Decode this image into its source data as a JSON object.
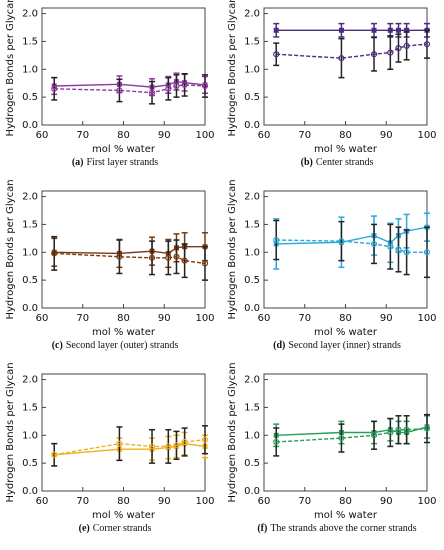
{
  "chart_data": [
    {
      "type": "line",
      "caption_label": "(a)",
      "caption": "First layer strands",
      "xlabel": "mol % water",
      "ylabel": "Hydrogen Bonds per Glycan",
      "x": [
        63,
        79,
        87,
        91,
        93,
        95,
        100
      ],
      "xlim": [
        60,
        100
      ],
      "xticks": [
        60,
        70,
        80,
        90,
        100
      ],
      "ylim": [
        0,
        2.1
      ],
      "yticks": [
        {
          "value": 0,
          "label": "0.0"
        },
        {
          "value": 0.5,
          "label": "0.5"
        },
        {
          "value": 1,
          "label": "1.0"
        },
        {
          "value": 1.5,
          "label": "1.5"
        },
        {
          "value": 2,
          "label": "2.0"
        }
      ],
      "series": [
        {
          "color": "#8e3a9d",
          "style": "solid",
          "error_color": "#8e3a9d",
          "values": [
            0.7,
            0.73,
            0.68,
            0.72,
            0.78,
            0.76,
            0.72
          ],
          "errors": [
            0.15,
            0.15,
            0.15,
            0.15,
            0.15,
            0.15,
            0.15
          ]
        },
        {
          "color": "#8e3a9d",
          "style": "dashed",
          "error_color": "#222222",
          "values": [
            0.65,
            0.62,
            0.58,
            0.65,
            0.7,
            0.72,
            0.7
          ],
          "errors": [
            0.2,
            0.2,
            0.2,
            0.2,
            0.2,
            0.2,
            0.2
          ]
        }
      ]
    },
    {
      "type": "line",
      "caption_label": "(b)",
      "caption": "Center strands",
      "xlabel": "mol % water",
      "ylabel": "Hydrogen Bonds per Glycan",
      "x": [
        63,
        79,
        87,
        91,
        93,
        95,
        100
      ],
      "xlim": [
        60,
        100
      ],
      "xticks": [
        60,
        70,
        80,
        90,
        100
      ],
      "ylim": [
        0,
        2.1
      ],
      "yticks": [
        {
          "value": 0,
          "label": "0.0"
        },
        {
          "value": 0.5,
          "label": "0.5"
        },
        {
          "value": 1,
          "label": "1.0"
        },
        {
          "value": 1.5,
          "label": "1.5"
        },
        {
          "value": 2,
          "label": "2.0"
        }
      ],
      "series": [
        {
          "color": "#4b2c80",
          "style": "solid",
          "error_color": "#4b2c80",
          "values": [
            1.7,
            1.7,
            1.7,
            1.7,
            1.7,
            1.7,
            1.7
          ],
          "errors": [
            0.12,
            0.12,
            0.12,
            0.12,
            0.12,
            0.12,
            0.12
          ]
        },
        {
          "color": "#4b2c80",
          "style": "dashed",
          "error_color": "#222222",
          "values": [
            1.27,
            1.2,
            1.27,
            1.3,
            1.38,
            1.42,
            1.45
          ],
          "errors": [
            0.2,
            0.35,
            0.3,
            0.3,
            0.25,
            0.25,
            0.25
          ]
        }
      ]
    },
    {
      "type": "line",
      "caption_label": "(c)",
      "caption": "Second layer (outer) strands",
      "xlabel": "mol % water",
      "ylabel": "Hydrogen Bonds per Glycan",
      "x": [
        63,
        79,
        87,
        91,
        93,
        95,
        100
      ],
      "xlim": [
        60,
        100
      ],
      "xticks": [
        60,
        70,
        80,
        90,
        100
      ],
      "ylim": [
        0,
        2.1
      ],
      "yticks": [
        {
          "value": 0,
          "label": "0.0"
        },
        {
          "value": 0.5,
          "label": "0.5"
        },
        {
          "value": 1,
          "label": "1.0"
        },
        {
          "value": 1.5,
          "label": "1.5"
        },
        {
          "value": 2,
          "label": "2.0"
        }
      ],
      "series": [
        {
          "color": "#7a3a10",
          "style": "solid",
          "error_color": "#7a3a10",
          "values": [
            1.0,
            0.98,
            1.02,
            0.98,
            1.08,
            1.1,
            1.1
          ],
          "errors": [
            0.25,
            0.25,
            0.25,
            0.25,
            0.25,
            0.25,
            0.25
          ]
        },
        {
          "color": "#7a3a10",
          "style": "dashed",
          "error_color": "#222222",
          "values": [
            0.98,
            0.92,
            0.9,
            0.9,
            0.92,
            0.85,
            0.8
          ],
          "errors": [
            0.3,
            0.3,
            0.3,
            0.3,
            0.3,
            0.3,
            0.3
          ]
        }
      ]
    },
    {
      "type": "line",
      "caption_label": "(d)",
      "caption": "Second layer (inner) strands",
      "xlabel": "mol % water",
      "ylabel": "Hydrogen Bonds per Glycan",
      "x": [
        63,
        79,
        87,
        91,
        93,
        95,
        100
      ],
      "xlim": [
        60,
        100
      ],
      "xticks": [
        60,
        70,
        80,
        90,
        100
      ],
      "ylim": [
        0,
        2.1
      ],
      "yticks": [
        {
          "value": 0,
          "label": "0.0"
        },
        {
          "value": 0.5,
          "label": "0.5"
        },
        {
          "value": 1,
          "label": "1.0"
        },
        {
          "value": 1.5,
          "label": "1.5"
        },
        {
          "value": 2,
          "label": "2.0"
        }
      ],
      "series": [
        {
          "color": "#2aa8d8",
          "style": "solid",
          "error_color": "#2aa8d8",
          "values": [
            1.15,
            1.18,
            1.3,
            1.17,
            1.3,
            1.38,
            1.45
          ],
          "errors": [
            0.45,
            0.45,
            0.35,
            0.35,
            0.3,
            0.3,
            0.25
          ]
        },
        {
          "color": "#2aa8d8",
          "style": "dashed",
          "error_color": "#222222",
          "values": [
            1.22,
            1.2,
            1.15,
            1.1,
            1.05,
            1.0,
            1.0
          ],
          "errors": [
            0.35,
            0.35,
            0.35,
            0.4,
            0.4,
            0.4,
            0.45
          ]
        }
      ]
    },
    {
      "type": "line",
      "caption_label": "(e)",
      "caption": "Corner strands",
      "xlabel": "mol % water",
      "ylabel": "Hydrogen Bonds per Glycan",
      "x": [
        63,
        79,
        87,
        91,
        93,
        95,
        100
      ],
      "xlim": [
        60,
        100
      ],
      "xticks": [
        60,
        70,
        80,
        90,
        100
      ],
      "ylim": [
        0,
        2.1
      ],
      "yticks": [
        {
          "value": 0,
          "label": "0.0"
        },
        {
          "value": 0.5,
          "label": "0.5"
        },
        {
          "value": 1,
          "label": "1.0"
        },
        {
          "value": 1.5,
          "label": "1.5"
        },
        {
          "value": 2,
          "label": "2.0"
        }
      ],
      "series": [
        {
          "color": "#f0b020",
          "style": "solid",
          "error_color": "#f0b020",
          "values": [
            0.65,
            0.75,
            0.75,
            0.78,
            0.8,
            0.85,
            0.8
          ],
          "errors": [
            0.2,
            0.2,
            0.2,
            0.2,
            0.2,
            0.2,
            0.2
          ]
        },
        {
          "color": "#f0b020",
          "style": "dashed",
          "error_color": "#222222",
          "values": [
            0.65,
            0.85,
            0.8,
            0.8,
            0.82,
            0.88,
            0.92
          ],
          "errors": [
            0.2,
            0.3,
            0.3,
            0.3,
            0.25,
            0.25,
            0.25
          ]
        }
      ]
    },
    {
      "type": "line",
      "caption_label": "(f)",
      "caption": "The strands above the corner strands",
      "xlabel": "mol % water",
      "ylabel": "Hydrogen Bonds per Glycan",
      "x": [
        63,
        79,
        87,
        91,
        93,
        95,
        100
      ],
      "xlim": [
        60,
        100
      ],
      "xticks": [
        60,
        70,
        80,
        90,
        100
      ],
      "ylim": [
        0,
        2.1
      ],
      "yticks": [
        {
          "value": 0,
          "label": "0.0"
        },
        {
          "value": 0.5,
          "label": "0.5"
        },
        {
          "value": 1,
          "label": "1.0"
        },
        {
          "value": 1.5,
          "label": "1.5"
        },
        {
          "value": 2,
          "label": "2.0"
        }
      ],
      "series": [
        {
          "color": "#2a9d5a",
          "style": "solid",
          "error_color": "#2a9d5a",
          "values": [
            1.0,
            1.05,
            1.05,
            1.1,
            1.05,
            1.05,
            1.15
          ],
          "errors": [
            0.2,
            0.2,
            0.2,
            0.2,
            0.2,
            0.2,
            0.2
          ]
        },
        {
          "color": "#2a9d5a",
          "style": "dashed",
          "error_color": "#222222",
          "values": [
            0.88,
            0.95,
            1.0,
            1.05,
            1.1,
            1.1,
            1.12
          ],
          "errors": [
            0.25,
            0.25,
            0.25,
            0.25,
            0.25,
            0.25,
            0.25
          ]
        }
      ]
    }
  ]
}
